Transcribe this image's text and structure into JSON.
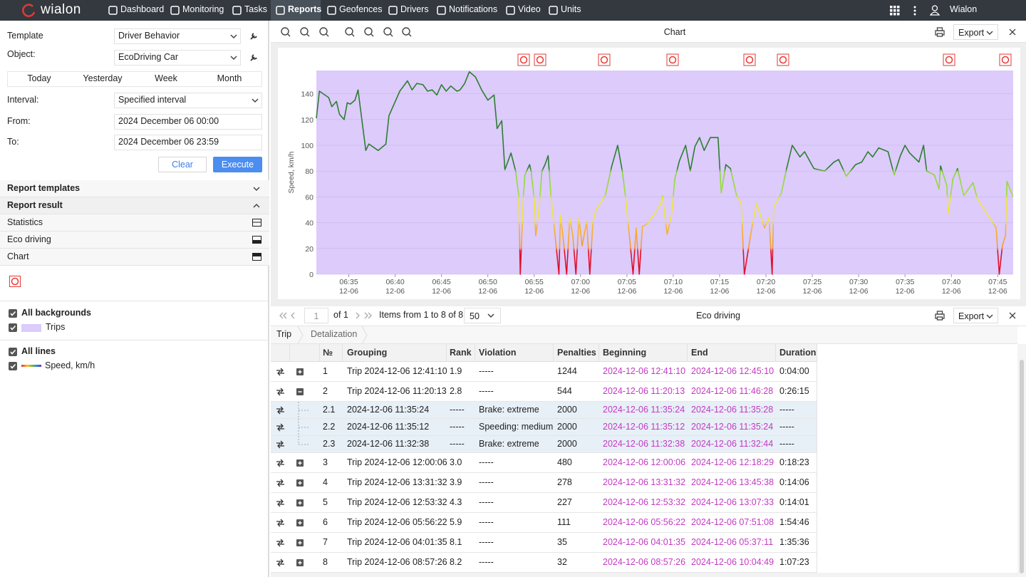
{
  "header": {
    "logo": "wialon",
    "nav": [
      "Dashboard",
      "Monitoring",
      "Tasks",
      "Reports",
      "Geofences",
      "Drivers",
      "Notifications",
      "Video",
      "Units"
    ],
    "active": 3,
    "user": "Wialon"
  },
  "form": {
    "template_label": "Template",
    "template": "Driver Behavior",
    "object_label": "Object:",
    "object": "EcoDriving Car",
    "periods": [
      "Today",
      "Yesterday",
      "Week",
      "Month"
    ],
    "interval_label": "Interval:",
    "interval": "Specified interval",
    "from_label": "From:",
    "from": "2024 December 06 00:00",
    "to_label": "To:",
    "to": "2024 December 06 23:59",
    "clear": "Clear",
    "execute": "Execute"
  },
  "sections": [
    "Report templates",
    "Report result"
  ],
  "results": [
    "Statistics",
    "Eco driving",
    "Chart"
  ],
  "legend": {
    "backgrounds_title": "All backgrounds",
    "lines_title": "All lines"
  },
  "chart_panel": {
    "title": "Chart",
    "export": "Export"
  },
  "chart_data": {
    "type": "line",
    "y_label": "Speed, km/h",
    "background": {
      "name": "Trips",
      "color": "#dccbfb"
    },
    "grid": true,
    "xlim": [
      "06:31:30",
      "07:46:40"
    ],
    "xticks": [
      {
        "value": "06:35:00",
        "label": "06:35"
      },
      {
        "value": "06:40:00",
        "label": "06:40"
      },
      {
        "value": "06:45:00",
        "label": "06:45"
      },
      {
        "value": "06:50:00",
        "label": "06:50"
      },
      {
        "value": "06:55:00",
        "label": "06:55"
      },
      {
        "value": "07:00:00",
        "label": "07:00"
      },
      {
        "value": "07:05:00",
        "label": "07:05"
      },
      {
        "value": "07:10:00",
        "label": "07:10"
      },
      {
        "value": "07:15:00",
        "label": "07:15"
      },
      {
        "value": "07:20:00",
        "label": "07:20"
      },
      {
        "value": "07:25:00",
        "label": "07:25"
      },
      {
        "value": "07:30:00",
        "label": "07:30"
      },
      {
        "value": "07:35:00",
        "label": "07:35"
      },
      {
        "value": "07:40:00",
        "label": "07:40"
      },
      {
        "value": "07:45:00",
        "label": "07:45"
      }
    ],
    "xtick_date": "12-06",
    "ylim": [
      0,
      158
    ],
    "yticks": [
      0,
      20,
      40,
      60,
      80,
      100,
      120,
      140
    ],
    "x": [
      "06:31:30",
      "06:31:50",
      "06:32:50",
      "06:33:10",
      "06:33:40",
      "06:34:00",
      "06:34:30",
      "06:34:50",
      "06:35:10",
      "06:35:40",
      "06:36:00",
      "06:36:50",
      "06:37:10",
      "06:38:10",
      "06:39:00",
      "06:39:20",
      "06:40:30",
      "06:41:20",
      "06:41:50",
      "06:42:20",
      "06:43:00",
      "06:43:30",
      "06:44:00",
      "06:44:30",
      "06:45:00",
      "06:45:30",
      "06:46:00",
      "06:46:40",
      "06:47:00",
      "06:47:30",
      "06:48:00",
      "06:48:40",
      "06:49:20",
      "06:50:00",
      "06:50:40",
      "06:51:00",
      "06:51:30",
      "06:51:50",
      "06:52:30",
      "06:53:00",
      "06:53:20",
      "06:53:30",
      "06:53:50",
      "06:54:00",
      "06:54:30",
      "06:54:40",
      "06:55:00",
      "06:55:10",
      "06:55:30",
      "06:55:50",
      "06:56:10",
      "06:56:30",
      "06:56:50",
      "06:57:10",
      "06:57:40",
      "06:57:50",
      "06:58:10",
      "06:58:30",
      "06:58:50",
      "06:59:10",
      "06:59:30",
      "06:59:50",
      "07:00:10",
      "07:00:40",
      "07:01:00",
      "07:01:20",
      "07:01:40",
      "07:02:40",
      "07:03:20",
      "07:04:00",
      "07:04:30",
      "07:04:50",
      "07:05:20",
      "07:05:40",
      "07:06:00",
      "07:06:20",
      "07:06:40",
      "07:07:10",
      "07:08:00",
      "07:08:40",
      "07:08:50",
      "07:09:20",
      "07:09:50",
      "07:10:10",
      "07:10:40",
      "07:11:20",
      "07:11:50",
      "07:12:20",
      "07:12:50",
      "07:13:20",
      "07:14:00",
      "07:14:50",
      "07:15:10",
      "07:15:40",
      "07:16:10",
      "07:16:50",
      "07:17:20",
      "07:17:40",
      "07:18:20",
      "07:18:40",
      "07:19:00",
      "07:19:50",
      "07:20:20",
      "07:20:40",
      "07:20:50",
      "07:21:40",
      "07:22:10",
      "07:22:50",
      "07:23:40",
      "07:24:10",
      "07:25:10",
      "07:26:20",
      "07:27:20",
      "07:27:50",
      "07:28:40",
      "07:29:40",
      "07:30:20",
      "07:31:00",
      "07:31:30",
      "07:32:10",
      "07:33:10",
      "07:33:50",
      "07:34:30",
      "07:35:00",
      "07:35:30",
      "07:36:30",
      "07:37:00",
      "07:37:20",
      "07:38:10",
      "07:38:40",
      "07:38:50",
      "07:39:30",
      "07:39:40",
      "07:40:10",
      "07:40:40",
      "07:41:20",
      "07:42:20",
      "07:42:50",
      "07:43:50",
      "07:44:50",
      "07:45:10",
      "07:45:30",
      "07:45:50",
      "07:46:00",
      "07:46:40"
    ],
    "series": [
      {
        "name": "Speed, km/h",
        "color": "#2e7d32",
        "values": [
          121,
          142,
          137,
          130,
          134,
          124,
          120,
          133,
          132,
          135,
          143,
          96,
          101,
          96,
          101,
          123,
          142,
          150,
          143,
          148,
          147,
          142,
          143,
          139,
          147,
          142,
          146,
          142,
          143,
          148,
          157,
          153,
          143,
          135,
          139,
          113,
          119,
          81,
          94,
          80,
          61,
          0,
          61,
          77,
          85,
          80,
          58,
          30,
          49,
          80,
          85,
          92,
          58,
          36,
          0,
          46,
          25,
          0,
          44,
          30,
          0,
          44,
          22,
          41,
          0,
          41,
          50,
          61,
          83,
          100,
          80,
          61,
          25,
          0,
          36,
          0,
          37,
          39,
          47,
          55,
          61,
          31,
          47,
          74,
          88,
          100,
          80,
          99,
          106,
          96,
          106,
          106,
          63,
          85,
          82,
          61,
          55,
          0,
          30,
          44,
          55,
          36,
          44,
          0,
          52,
          63,
          80,
          100,
          91,
          95,
          82,
          80,
          87,
          89,
          76,
          85,
          87,
          95,
          91,
          98,
          95,
          77,
          92,
          100,
          94,
          87,
          100,
          80,
          77,
          66,
          84,
          69,
          47,
          74,
          82,
          61,
          71,
          58,
          47,
          36,
          0,
          22,
          30,
          72,
          60
        ]
      }
    ]
  },
  "table_panel": {
    "page": "1",
    "pages": "of 1",
    "items": "Items from 1 to 8 of 8",
    "per_page": "50",
    "title": "Eco driving",
    "export": "Export",
    "tabs": [
      "Trip",
      "Detalization"
    ]
  },
  "table": {
    "columns": [
      "№",
      "Grouping",
      "Rank",
      "Violation",
      "Penalties",
      "Beginning",
      "End",
      "Duration"
    ],
    "rows": [
      {
        "cells": [
          "1",
          "Trip 2024-12-06 12:41:10",
          "1.9",
          "-----",
          "1244",
          "2024-12-06 12:41:10",
          "2024-12-06 12:45:10",
          "0:04:00"
        ]
      },
      {
        "cells": [
          "2",
          "Trip 2024-12-06 11:20:13",
          "2.8",
          "-----",
          "544",
          "2024-12-06 11:20:13",
          "2024-12-06 11:46:28",
          "0:26:15"
        ],
        "expanded": true
      },
      {
        "cells": [
          "2.1",
          "2024-12-06 11:35:24",
          "-----",
          "Brake: extreme",
          "2000",
          "2024-12-06 11:35:24",
          "2024-12-06 11:35:28",
          "-----"
        ],
        "sub": true
      },
      {
        "cells": [
          "2.2",
          "2024-12-06 11:35:12",
          "-----",
          "Speeding: medium",
          "2000",
          "2024-12-06 11:35:12",
          "2024-12-06 11:35:24",
          "-----"
        ],
        "sub": true
      },
      {
        "cells": [
          "2.3",
          "2024-12-06 11:32:38",
          "-----",
          "Brake: extreme",
          "2000",
          "2024-12-06 11:32:38",
          "2024-12-06 11:32:44",
          "-----"
        ],
        "sub": true,
        "last": true
      },
      {
        "cells": [
          "3",
          "Trip 2024-12-06 12:00:06",
          "3.0",
          "-----",
          "480",
          "2024-12-06 12:00:06",
          "2024-12-06 12:18:29",
          "0:18:23"
        ]
      },
      {
        "cells": [
          "4",
          "Trip 2024-12-06 13:31:32",
          "3.9",
          "-----",
          "278",
          "2024-12-06 13:31:32",
          "2024-12-06 13:45:38",
          "0:14:06"
        ]
      },
      {
        "cells": [
          "5",
          "Trip 2024-12-06 12:53:32",
          "4.3",
          "-----",
          "227",
          "2024-12-06 12:53:32",
          "2024-12-06 13:07:33",
          "0:14:01"
        ]
      },
      {
        "cells": [
          "6",
          "Trip 2024-12-06 05:56:22",
          "5.9",
          "-----",
          "111",
          "2024-12-06 05:56:22",
          "2024-12-06 07:51:08",
          "1:54:46"
        ]
      },
      {
        "cells": [
          "7",
          "Trip 2024-12-06 04:01:35",
          "8.1",
          "-----",
          "35",
          "2024-12-06 04:01:35",
          "2024-12-06 05:37:11",
          "1:35:36"
        ]
      },
      {
        "cells": [
          "8",
          "Trip 2024-12-06 08:57:26",
          "8.2",
          "-----",
          "32",
          "2024-12-06 08:57:26",
          "2024-12-06 10:04:49",
          "1:07:23"
        ]
      }
    ]
  }
}
